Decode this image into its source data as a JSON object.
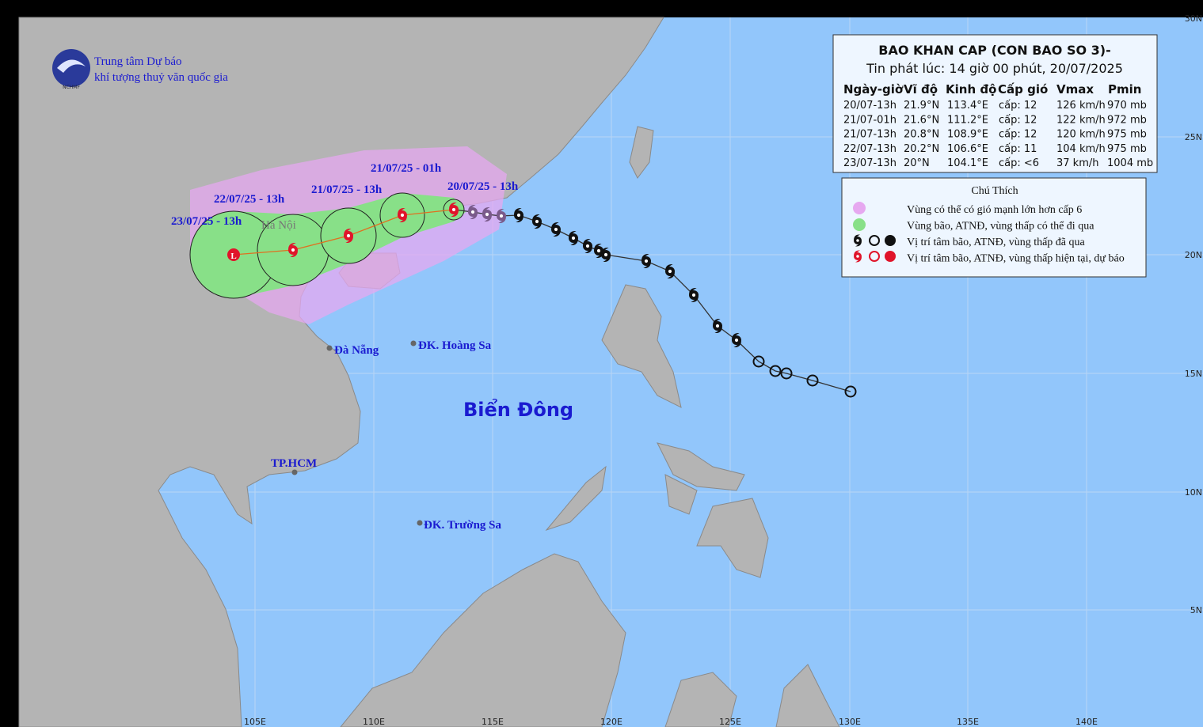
{
  "agency": {
    "line1": "Trung tâm Dự báo",
    "line2": "khí tượng thuỷ văn quốc gia",
    "logo_text": "NCHMF"
  },
  "bulletin": {
    "title": "BAO KHAN CAP (CON BAO SO 3)-",
    "subtitle": "Tin phát lúc: 14 giờ 00 phút, 20/07/2025",
    "headers": [
      "Ngày-giờ",
      "Vĩ độ",
      "Kinh độ",
      "Cấp gió",
      "Vmax",
      "Pmin"
    ],
    "rows": [
      [
        "20/07-13h",
        "21.9°N",
        "113.4°E",
        "cấp: 12",
        "126 km/h",
        "970 mb"
      ],
      [
        "21/07-01h",
        "21.6°N",
        "111.2°E",
        "cấp: 12",
        "122 km/h",
        "972 mb"
      ],
      [
        "21/07-13h",
        "20.8°N",
        "108.9°E",
        "cấp: 12",
        "120 km/h",
        "975 mb"
      ],
      [
        "22/07-13h",
        "20.2°N",
        "106.6°E",
        "cấp: 11",
        "104 km/h",
        "975 mb"
      ],
      [
        "23/07-13h",
        "20°N",
        "104.1°E",
        "cấp: <6",
        "37 km/h",
        "1004 mb"
      ]
    ]
  },
  "legend": {
    "title": "Chú Thích",
    "items": [
      "Vùng có thể có gió mạnh lớn hơn cấp 6",
      "Vùng bão, ATNĐ, vùng thấp có thể đi qua",
      "Vị trí tâm bão, ATNĐ, vùng thấp đã qua",
      "Vị trí tâm bão, ATNĐ, vùng thấp hiện tại, dự báo"
    ]
  },
  "map_labels": {
    "forecast_times": [
      "20/07/25 - 13h",
      "21/07/25 - 01h",
      "21/07/25 - 13h",
      "22/07/25 - 13h",
      "23/07/25 - 13h"
    ],
    "places": [
      "Hà Nội",
      "Đà Nẵng",
      "ĐK. Hoàng Sa",
      "TP.HCM",
      "ĐK. Trường Sa",
      "Biển Đông"
    ]
  },
  "axes": {
    "longitude": [
      "105E",
      "110E",
      "115E",
      "120E",
      "125E",
      "130E",
      "135E",
      "140E"
    ],
    "latitude": [
      "30N",
      "25N",
      "20N",
      "15N",
      "10N",
      "5N"
    ]
  }
}
